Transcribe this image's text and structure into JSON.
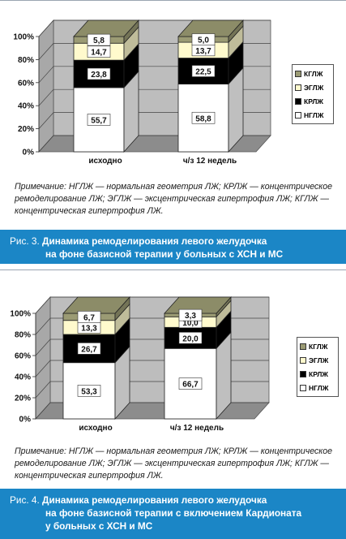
{
  "colors": {
    "NGLZh": "#ffffff",
    "KRLZh": "#000000",
    "EGLZh": "#fffacd",
    "KGLZh": "#9b9b74",
    "wall": "#bdbdbd",
    "floor": "#8c8c8c",
    "caption_bg": "#1b86c6"
  },
  "legend_items": [
    "КГЛЖ",
    "ЭГЛЖ",
    "КРЛЖ",
    "НГЛЖ"
  ],
  "figures": [
    {
      "note": "Примечание: НГЛЖ — нормальная геометрия ЛЖ; КРЛЖ — концентрическое ремоделирование ЛЖ; ЭГЛЖ — эксцентрическая гипертрофия ЛЖ; КГЛЖ — концентрическая гипертрофия ЛЖ.",
      "caption_label": "Рис. 3.",
      "caption_line1": "Динамика ремоделирования левого желудочка",
      "caption_line2": "на фоне базисной терапии у больных с ХСН и МС",
      "caption_line3": "",
      "chart_data": {
        "type": "bar",
        "stacked": true,
        "categories": [
          "исходно",
          "ч/з 12 недель"
        ],
        "series": [
          {
            "name": "НГЛЖ",
            "values": [
              55.7,
              58.8
            ],
            "labels": [
              "55,7",
              "58,8"
            ]
          },
          {
            "name": "КРЛЖ",
            "values": [
              23.8,
              22.5
            ],
            "labels": [
              "23,8",
              "22,5"
            ]
          },
          {
            "name": "ЭГЛЖ",
            "values": [
              14.7,
              13.7
            ],
            "labels": [
              "14,7",
              "13,7"
            ]
          },
          {
            "name": "КГЛЖ",
            "values": [
              5.8,
              5.0
            ],
            "labels": [
              "5,8",
              "5,0"
            ]
          }
        ],
        "y_ticks": [
          "0%",
          "20%",
          "40%",
          "60%",
          "80%",
          "100%"
        ],
        "ylim": [
          0,
          100
        ],
        "grid": true,
        "legend": "right"
      }
    },
    {
      "note": "Примечание: НГЛЖ — нормальная геометрия ЛЖ; КРЛЖ — концентрическое ремоделирование ЛЖ; ЭГЛЖ — эксцентрическая гипертрофия ЛЖ; КГЛЖ — концентрическая гипертрофия ЛЖ.",
      "caption_label": "Рис. 4.",
      "caption_line1": "Динамика ремоделирования левого желудочка",
      "caption_line2": "на фоне базисной терапии с включением Кардионата",
      "caption_line3": "у больных с ХСН и МС",
      "chart_data": {
        "type": "bar",
        "stacked": true,
        "categories": [
          "исходно",
          "ч/з 12 недель"
        ],
        "series": [
          {
            "name": "НГЛЖ",
            "values": [
              53.3,
              66.7
            ],
            "labels": [
              "53,3",
              "66,7"
            ]
          },
          {
            "name": "КРЛЖ",
            "values": [
              26.7,
              20.0
            ],
            "labels": [
              "26,7",
              "20,0"
            ]
          },
          {
            "name": "ЭГЛЖ",
            "values": [
              13.3,
              10.0
            ],
            "labels": [
              "13,3",
              "10,0"
            ]
          },
          {
            "name": "КГЛЖ",
            "values": [
              6.7,
              3.3
            ],
            "labels": [
              "6,7",
              "3,3"
            ]
          }
        ],
        "y_ticks": [
          "0%",
          "20%",
          "40%",
          "60%",
          "80%",
          "100%"
        ],
        "ylim": [
          0,
          100
        ],
        "grid": true,
        "legend": "right"
      }
    }
  ]
}
